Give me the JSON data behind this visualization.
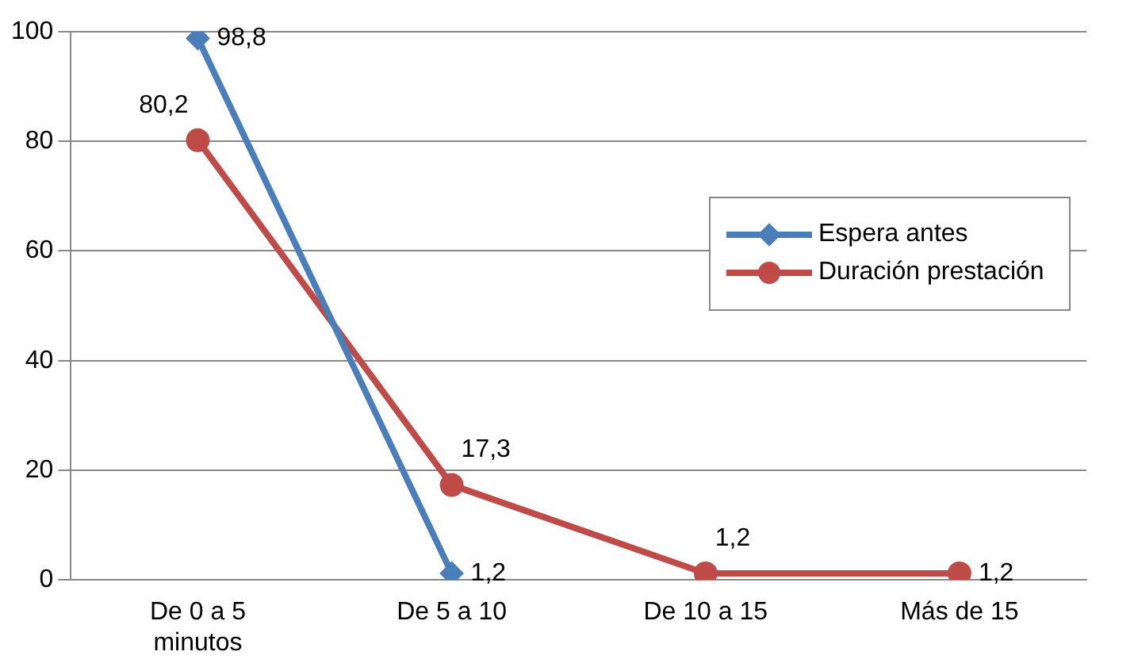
{
  "chart_data": {
    "type": "line",
    "categories": [
      "De 0 a 5 minutos",
      "De 5 a 10",
      "De 10 a 15",
      "Más de 15"
    ],
    "series": [
      {
        "name": "Espera antes",
        "color": "#4a7ebb",
        "marker": "diamond",
        "values": [
          98.8,
          1.2,
          null,
          null
        ],
        "value_labels": [
          "98,8",
          "1,2",
          null,
          null
        ]
      },
      {
        "name": "Duración prestación",
        "color": "#be4b48",
        "marker": "circle",
        "values": [
          80.2,
          17.3,
          1.2,
          1.2
        ],
        "value_labels": [
          "80,2",
          "17,3",
          "1,2",
          "1,2"
        ]
      }
    ],
    "ylim": [
      0,
      100
    ],
    "yticks": [
      0,
      20,
      40,
      60,
      80,
      100
    ],
    "grid": "y",
    "legend": "right",
    "line_style": "solid"
  }
}
